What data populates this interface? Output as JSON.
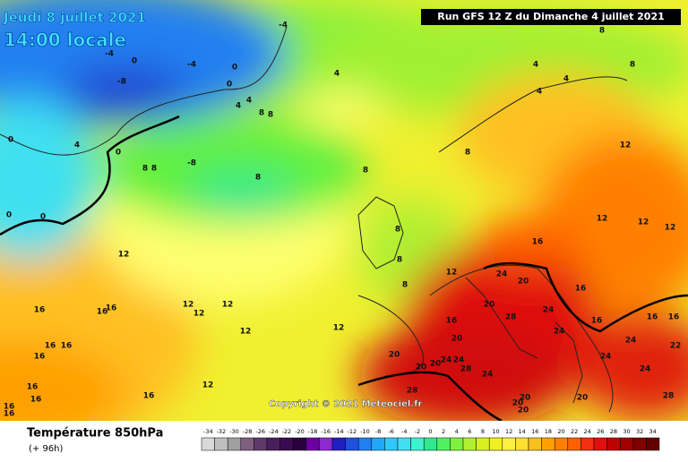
{
  "header": {
    "date": "Jeudi 8 juillet 2021",
    "time": "14:00 locale",
    "run": "Run GFS 12 Z du Dimanche 4 juillet 2021"
  },
  "copyright": "Copyright © 2021 Meteociel.fr",
  "footer": {
    "title": "Température 850hPa",
    "lead": "(+ 96h)"
  },
  "legend": {
    "values": [
      -34,
      -32,
      -30,
      -28,
      -26,
      -24,
      -22,
      -20,
      -18,
      -16,
      -14,
      -12,
      -10,
      -8,
      -6,
      -4,
      -2,
      0,
      2,
      4,
      6,
      8,
      10,
      12,
      14,
      16,
      18,
      20,
      22,
      24,
      26,
      28,
      30,
      32,
      34
    ],
    "colors": [
      "#d9d9d9",
      "#bfbfbf",
      "#a0a0a0",
      "#7f5f7f",
      "#5e3a6a",
      "#4a1f5e",
      "#3c0a52",
      "#2a0040",
      "#6a00a0",
      "#8a2ad0",
      "#2020c0",
      "#2050e0",
      "#2080f0",
      "#20a8f8",
      "#30c8ff",
      "#40e0f0",
      "#40f0d0",
      "#30e890",
      "#50f060",
      "#80f040",
      "#b0f030",
      "#d8f020",
      "#f0f020",
      "#fff040",
      "#ffe030",
      "#ffc020",
      "#ffa000",
      "#ff8000",
      "#ff6000",
      "#f03010",
      "#e01010",
      "#c00000",
      "#a00000",
      "#800000",
      "#600000"
    ]
  },
  "map": {
    "contour_labels": [
      -4,
      -4,
      0,
      -4,
      0,
      0,
      -8,
      4,
      4,
      4,
      8,
      8,
      4,
      4,
      4,
      8,
      8,
      0,
      4,
      0,
      8,
      8,
      -8,
      8,
      8,
      8,
      12,
      0,
      0,
      12,
      12,
      12,
      8,
      16,
      12,
      8,
      12,
      24,
      20,
      16,
      8,
      16,
      16,
      16,
      12,
      12,
      12,
      20,
      28,
      24,
      16,
      12,
      12,
      16,
      16,
      16,
      20,
      24,
      16,
      16,
      16,
      20,
      20,
      20,
      24,
      24,
      28,
      24,
      24,
      24,
      24,
      22,
      16,
      12,
      16,
      28,
      20,
      20,
      28,
      20,
      20,
      16,
      16,
      16
    ]
  }
}
